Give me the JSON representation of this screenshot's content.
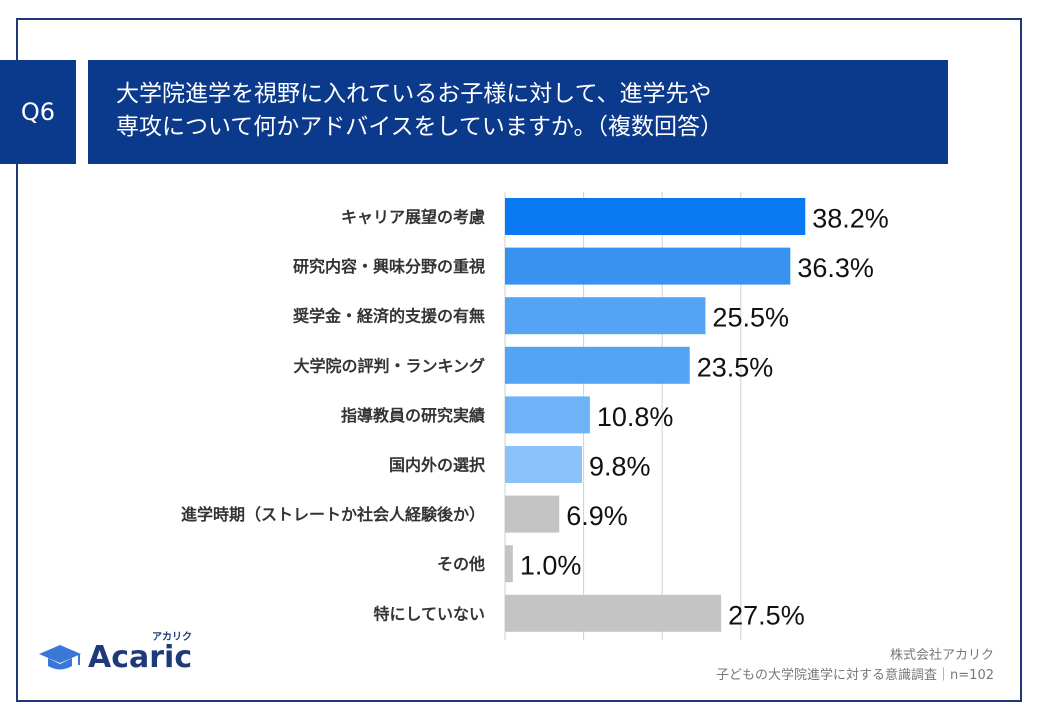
{
  "question_label": "Q6",
  "title_line1": "大学院進学を視野に入れているお子様に対して、進学先や",
  "title_line2": "専攻について何かアドバイスをしていますか。（複数回答）",
  "footer": {
    "company": "株式会社アカリク",
    "survey": "子どもの大学院進学に対する意識調査｜n=102"
  },
  "logo": {
    "name": "Acaric",
    "kana": "アカリク",
    "icon": "graduation-cap-icon"
  },
  "colors": {
    "frame": "#1f3a7a",
    "header_bg": "#0b3a8c",
    "bar_top1": "#0a78f0",
    "bar_top2": "#3892f0",
    "bar_mid": "#55a3f5",
    "bar_light1": "#6eb2f7",
    "bar_light2": "#8cc2fa",
    "bar_gray": "#c4c4c4",
    "grid": "#d0d0d0"
  },
  "chart_data": {
    "type": "bar",
    "orientation": "horizontal",
    "categories": [
      "キャリア展望の考慮",
      "研究内容・興味分野の重視",
      "奨学金・経済的支援の有無",
      "大学院の評判・ランキング",
      "指導教員の研究実績",
      "国内外の選択",
      "進学時期（ストレートか社会人経験後か）",
      "その他",
      "特にしていない"
    ],
    "values": [
      38.2,
      36.3,
      25.5,
      23.5,
      10.8,
      9.8,
      6.9,
      1.0,
      27.5
    ],
    "value_labels": [
      "38.2%",
      "36.3%",
      "25.5%",
      "23.5%",
      "10.8%",
      "9.8%",
      "6.9%",
      "1.0%",
      "27.5%"
    ],
    "bar_colors": [
      "#0a78f0",
      "#3892f0",
      "#55a3f5",
      "#55a3f5",
      "#6eb2f7",
      "#8cc2fa",
      "#c4c4c4",
      "#c4c4c4",
      "#c4c4c4"
    ],
    "xlim": [
      0,
      40
    ],
    "grid": true,
    "gridlines": [
      0,
      10,
      20,
      30
    ]
  }
}
